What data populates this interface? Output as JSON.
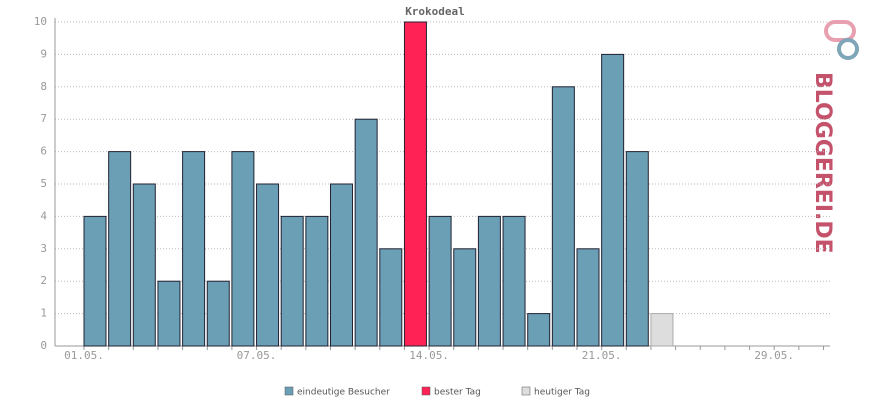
{
  "chart_data": {
    "type": "bar",
    "title": "Krokodeal",
    "categories": [
      "01.05.",
      null,
      null,
      null,
      null,
      null,
      null,
      "07.05.",
      null,
      null,
      null,
      null,
      null,
      null,
      "14.05.",
      null,
      null,
      null,
      null,
      null,
      null,
      "21.05.",
      null,
      null,
      null,
      null,
      null,
      null,
      "29.05.",
      null,
      null
    ],
    "series": [
      {
        "name": "eindeutige Besucher",
        "color": "#6a9fb5",
        "values": [
          4,
          6,
          5,
          2,
          6,
          2,
          6,
          5,
          4,
          4,
          5,
          7,
          3,
          null,
          4,
          3,
          4,
          4,
          1,
          8,
          3,
          9,
          6,
          null,
          null,
          null,
          null,
          null,
          null,
          null,
          null
        ]
      },
      {
        "name": "bester Tag",
        "color": "#ff2255",
        "values": [
          null,
          null,
          null,
          null,
          null,
          null,
          null,
          null,
          null,
          null,
          null,
          null,
          null,
          10,
          null,
          null,
          null,
          null,
          null,
          null,
          null,
          null,
          null,
          null,
          null,
          null,
          null,
          null,
          null,
          null,
          null
        ]
      },
      {
        "name": "heutiger Tag",
        "color": "#dddddd",
        "values": [
          null,
          null,
          null,
          null,
          null,
          null,
          null,
          null,
          null,
          null,
          null,
          null,
          null,
          null,
          null,
          null,
          null,
          null,
          null,
          null,
          null,
          null,
          null,
          1,
          null,
          null,
          null,
          null,
          null,
          null,
          null
        ]
      }
    ],
    "ylim": [
      0,
      10
    ],
    "yticks": [
      0,
      1,
      2,
      3,
      4,
      5,
      6,
      7,
      8,
      9,
      10
    ],
    "grid": true,
    "logo": "BLOGGEREI.DE"
  }
}
